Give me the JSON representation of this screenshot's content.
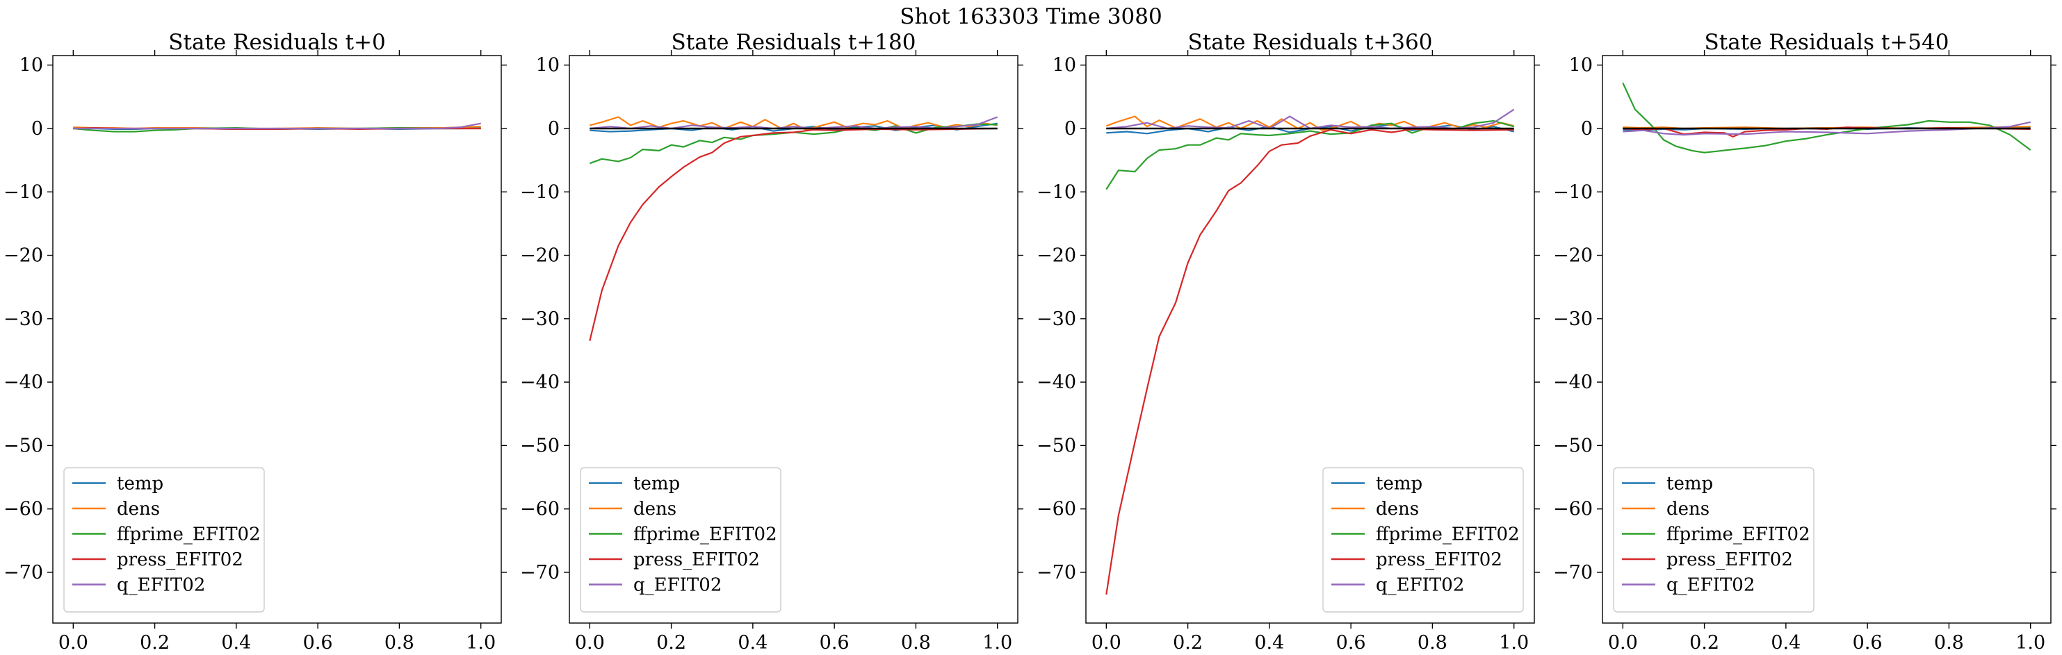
{
  "figure": {
    "suptitle": "Shot 163303   Time 3080"
  },
  "chart_data": [
    {
      "type": "line",
      "title": "State Residuals t+0",
      "xlabel": "",
      "ylabel": "",
      "xlim": [
        -0.05,
        1.05
      ],
      "ylim": [
        -78,
        11.5
      ],
      "xticks": [
        0.0,
        0.2,
        0.4,
        0.6,
        0.8,
        1.0
      ],
      "yticks": [
        10,
        0,
        -10,
        -20,
        -30,
        -40,
        -50,
        -60,
        -70
      ],
      "legend_position": "lower-left",
      "series": [
        {
          "name": "temp",
          "color": "#1f77b4",
          "x": [
            0,
            0.05,
            0.1,
            0.15,
            0.2,
            0.3,
            0.4,
            0.5,
            0.6,
            0.7,
            0.8,
            0.9,
            0.95,
            1.0
          ],
          "y": [
            0,
            0,
            -0.1,
            -0.1,
            0,
            0,
            -0.1,
            0,
            -0.1,
            0,
            -0.1,
            0,
            0,
            0.1
          ]
        },
        {
          "name": "dens",
          "color": "#ff7f0e",
          "x": [
            0,
            0.05,
            0.1,
            0.15,
            0.2,
            0.3,
            0.4,
            0.5,
            0.6,
            0.7,
            0.8,
            0.9,
            0.95,
            1.0
          ],
          "y": [
            0.2,
            0.1,
            0.1,
            0,
            0.1,
            0.1,
            0,
            0,
            0.1,
            0,
            0.1,
            0.1,
            0.2,
            0.3
          ]
        },
        {
          "name": "ffprime_EFIT02",
          "color": "#2ca02c",
          "x": [
            0,
            0.05,
            0.1,
            0.15,
            0.2,
            0.25,
            0.3,
            0.4,
            0.5,
            0.6,
            0.7,
            0.8,
            0.9,
            1.0
          ],
          "y": [
            0,
            -0.3,
            -0.5,
            -0.5,
            -0.3,
            -0.2,
            0,
            0.1,
            -0.1,
            0,
            0,
            0.1,
            0,
            0
          ]
        },
        {
          "name": "press_EFIT02",
          "color": "#d62728",
          "x": [
            0,
            0.05,
            0.1,
            0.2,
            0.3,
            0.4,
            0.5,
            0.6,
            0.7,
            0.8,
            0.9,
            1.0
          ],
          "y": [
            0,
            0.1,
            0,
            0,
            0,
            -0.1,
            -0.1,
            0,
            -0.1,
            0,
            0,
            0
          ]
        },
        {
          "name": "q_EFIT02",
          "color": "#9467bd",
          "x": [
            0,
            0.1,
            0.2,
            0.3,
            0.4,
            0.5,
            0.6,
            0.7,
            0.8,
            0.9,
            0.95,
            1.0
          ],
          "y": [
            0,
            0,
            0,
            0,
            0,
            0,
            0,
            0,
            0,
            0,
            0.2,
            0.8
          ]
        }
      ]
    },
    {
      "type": "line",
      "title": "State Residuals t+180",
      "xlabel": "",
      "ylabel": "",
      "xlim": [
        -0.05,
        1.05
      ],
      "ylim": [
        -78,
        11.5
      ],
      "xticks": [
        0.0,
        0.2,
        0.4,
        0.6,
        0.8,
        1.0
      ],
      "yticks": [
        10,
        0,
        -10,
        -20,
        -30,
        -40,
        -50,
        -60,
        -70
      ],
      "legend_position": "lower-left",
      "series": [
        {
          "name": "temp",
          "color": "#1f77b4",
          "x": [
            0,
            0.05,
            0.1,
            0.15,
            0.2,
            0.25,
            0.3,
            0.35,
            0.4,
            0.45,
            0.5,
            0.55,
            0.6,
            0.65,
            0.7,
            0.75,
            0.8,
            0.85,
            0.9,
            0.95,
            1.0
          ],
          "y": [
            -0.3,
            -0.5,
            -0.4,
            -0.2,
            0,
            -0.3,
            0.2,
            -0.2,
            0.3,
            -0.4,
            0,
            0.3,
            -0.2,
            0.2,
            0.4,
            -0.3,
            0.2,
            0.5,
            -0.2,
            0.3,
            0.8
          ]
        },
        {
          "name": "dens",
          "color": "#ff7f0e",
          "x": [
            0,
            0.03,
            0.07,
            0.1,
            0.13,
            0.17,
            0.2,
            0.23,
            0.27,
            0.3,
            0.33,
            0.37,
            0.4,
            0.43,
            0.47,
            0.5,
            0.53,
            0.57,
            0.6,
            0.63,
            0.67,
            0.7,
            0.73,
            0.77,
            0.8,
            0.83,
            0.87,
            0.9,
            0.93,
            0.97,
            1.0
          ],
          "y": [
            0.5,
            1,
            1.8,
            0.5,
            1.2,
            0.2,
            0.8,
            1.2,
            0.4,
            0.9,
            0,
            1,
            0.3,
            1.4,
            0,
            0.8,
            -0.2,
            0.5,
            1,
            0.2,
            0.8,
            0.6,
            1.2,
            0,
            0.5,
            0.9,
            0.2,
            0.6,
            0.3,
            0.8,
            0.5
          ]
        },
        {
          "name": "ffprime_EFIT02",
          "color": "#2ca02c",
          "x": [
            0,
            0.03,
            0.07,
            0.1,
            0.13,
            0.17,
            0.2,
            0.23,
            0.27,
            0.3,
            0.33,
            0.37,
            0.4,
            0.45,
            0.5,
            0.55,
            0.6,
            0.65,
            0.7,
            0.75,
            0.8,
            0.85,
            0.9,
            0.95,
            1.0
          ],
          "y": [
            -5.5,
            -4.8,
            -5.2,
            -4.6,
            -3.3,
            -3.5,
            -2.6,
            -2.9,
            -1.9,
            -2.2,
            -1.4,
            -1.7,
            -1.1,
            -0.9,
            -0.6,
            -0.9,
            -0.6,
            0.1,
            -0.3,
            0.4,
            -0.7,
            0.2,
            0.3,
            0.7,
            0.6
          ]
        },
        {
          "name": "press_EFIT02",
          "color": "#d62728",
          "x": [
            0,
            0.03,
            0.07,
            0.1,
            0.13,
            0.17,
            0.2,
            0.23,
            0.27,
            0.3,
            0.33,
            0.37,
            0.4,
            0.45,
            0.5,
            0.55,
            0.6,
            0.7,
            0.8,
            0.9,
            1.0
          ],
          "y": [
            -33.5,
            -25.5,
            -18.5,
            -14.8,
            -12,
            -9.2,
            -7.6,
            -6.1,
            -4.5,
            -3.8,
            -2.3,
            -1.3,
            -1.1,
            -0.7,
            -0.6,
            -0.2,
            -0.3,
            -0.1,
            -0.2,
            -0.1,
            0
          ]
        },
        {
          "name": "q_EFIT02",
          "color": "#9467bd",
          "x": [
            0,
            0.05,
            0.1,
            0.15,
            0.2,
            0.25,
            0.3,
            0.35,
            0.4,
            0.45,
            0.5,
            0.55,
            0.6,
            0.65,
            0.7,
            0.75,
            0.8,
            0.85,
            0.9,
            0.95,
            1.0
          ],
          "y": [
            0,
            0.3,
            0,
            0.4,
            0,
            0.5,
            0.2,
            0.1,
            0.3,
            0,
            0.3,
            0,
            0.2,
            0.4,
            0,
            0.2,
            0.3,
            0,
            0.3,
            0.6,
            1.8
          ]
        },
        {
          "name": "",
          "color": "#000000",
          "x": [
            0,
            0.2,
            0.4,
            0.6,
            0.8,
            1.0
          ],
          "y": [
            0,
            0,
            0,
            0,
            0,
            0
          ]
        }
      ]
    },
    {
      "type": "line",
      "title": "State Residuals t+360",
      "xlabel": "",
      "ylabel": "",
      "xlim": [
        -0.05,
        1.05
      ],
      "ylim": [
        -78,
        11.5
      ],
      "xticks": [
        0.0,
        0.2,
        0.4,
        0.6,
        0.8,
        1.0
      ],
      "yticks": [
        10,
        0,
        -10,
        -20,
        -30,
        -40,
        -50,
        -60,
        -70
      ],
      "legend_position": "lower-right",
      "series": [
        {
          "name": "temp",
          "color": "#1f77b4",
          "x": [
            0,
            0.05,
            0.1,
            0.15,
            0.2,
            0.25,
            0.3,
            0.35,
            0.4,
            0.45,
            0.5,
            0.55,
            0.6,
            0.65,
            0.7,
            0.75,
            0.8,
            0.85,
            0.9,
            0.95,
            1.0
          ],
          "y": [
            -0.7,
            -0.5,
            -0.8,
            -0.3,
            0,
            -0.5,
            0.2,
            -0.3,
            0.3,
            -0.6,
            0,
            0.3,
            -0.4,
            0.2,
            0.6,
            -0.3,
            0.2,
            0.5,
            -0.2,
            0.3,
            -0.5
          ]
        },
        {
          "name": "dens",
          "color": "#ff7f0e",
          "x": [
            0,
            0.03,
            0.07,
            0.1,
            0.13,
            0.17,
            0.2,
            0.23,
            0.27,
            0.3,
            0.33,
            0.37,
            0.4,
            0.43,
            0.47,
            0.5,
            0.53,
            0.57,
            0.6,
            0.63,
            0.67,
            0.7,
            0.73,
            0.77,
            0.8,
            0.83,
            0.87,
            0.9,
            0.93,
            0.97,
            1.0
          ],
          "y": [
            0.4,
            1.1,
            1.9,
            0.3,
            1.3,
            0.1,
            0.8,
            1.5,
            0.2,
            0.9,
            0,
            1.2,
            0.2,
            1.5,
            0,
            0.9,
            -0.3,
            0.4,
            1.1,
            0.1,
            0.8,
            0.5,
            1.1,
            0,
            0.4,
            0.9,
            0.1,
            0.6,
            0.2,
            0.9,
            0.4
          ]
        },
        {
          "name": "ffprime_EFIT02",
          "color": "#2ca02c",
          "x": [
            0,
            0.03,
            0.07,
            0.1,
            0.13,
            0.17,
            0.2,
            0.23,
            0.27,
            0.3,
            0.33,
            0.37,
            0.4,
            0.45,
            0.5,
            0.55,
            0.6,
            0.65,
            0.7,
            0.75,
            0.8,
            0.85,
            0.9,
            0.95,
            1.0
          ],
          "y": [
            -9.6,
            -6.6,
            -6.8,
            -4.7,
            -3.4,
            -3.2,
            -2.6,
            -2.6,
            -1.5,
            -1.8,
            -0.8,
            -1,
            -1.1,
            -0.8,
            -0.4,
            -0.9,
            -0.7,
            0.5,
            0.8,
            -0.7,
            0.3,
            -0.2,
            0.8,
            1.2,
            0.3
          ]
        },
        {
          "name": "press_EFIT02",
          "color": "#d62728",
          "x": [
            0,
            0.03,
            0.07,
            0.1,
            0.13,
            0.17,
            0.2,
            0.23,
            0.27,
            0.3,
            0.33,
            0.37,
            0.4,
            0.43,
            0.47,
            0.5,
            0.55,
            0.6,
            0.65,
            0.7,
            0.75,
            0.8,
            0.9,
            1.0
          ],
          "y": [
            -73.5,
            -61,
            -49.5,
            -41,
            -32.8,
            -27.5,
            -21.2,
            -16.8,
            -13,
            -9.8,
            -8.6,
            -5.9,
            -3.6,
            -2.6,
            -2.3,
            -1.2,
            -0.2,
            -0.8,
            -0.2,
            -0.6,
            -0.1,
            -0.2,
            -0.3,
            -0.2
          ]
        },
        {
          "name": "q_EFIT02",
          "color": "#9467bd",
          "x": [
            0,
            0.05,
            0.1,
            0.15,
            0.2,
            0.25,
            0.3,
            0.35,
            0.4,
            0.45,
            0.5,
            0.55,
            0.6,
            0.65,
            0.7,
            0.75,
            0.8,
            0.85,
            0.9,
            0.95,
            1.0
          ],
          "y": [
            0,
            0.3,
            0.9,
            0,
            0.4,
            0.2,
            0.1,
            1.2,
            0,
            1.9,
            0,
            0.5,
            0.2,
            0.3,
            0,
            0.2,
            0.3,
            0,
            0.2,
            0.9,
            3.0
          ]
        },
        {
          "name": "",
          "color": "#000000",
          "x": [
            0,
            0.2,
            0.4,
            0.6,
            0.8,
            1.0
          ],
          "y": [
            0,
            0,
            0,
            0,
            0,
            0
          ]
        }
      ]
    },
    {
      "type": "line",
      "title": "State Residuals t+540",
      "xlabel": "",
      "ylabel": "",
      "xlim": [
        -0.05,
        1.05
      ],
      "ylim": [
        -78,
        11.5
      ],
      "xticks": [
        0.0,
        0.2,
        0.4,
        0.6,
        0.8,
        1.0
      ],
      "yticks": [
        10,
        0,
        -10,
        -20,
        -30,
        -40,
        -50,
        -60,
        -70
      ],
      "legend_position": "lower-left",
      "series": [
        {
          "name": "temp",
          "color": "#1f77b4",
          "x": [
            0,
            0.05,
            0.1,
            0.15,
            0.2,
            0.3,
            0.4,
            0.5,
            0.6,
            0.7,
            0.8,
            0.9,
            1.0
          ],
          "y": [
            -0.2,
            -0.3,
            -0.1,
            -0.2,
            0,
            -0.1,
            0,
            0.1,
            -0.1,
            0.1,
            0,
            0.1,
            0.2
          ]
        },
        {
          "name": "dens",
          "color": "#ff7f0e",
          "x": [
            0,
            0.05,
            0.1,
            0.15,
            0.2,
            0.3,
            0.4,
            0.5,
            0.6,
            0.7,
            0.8,
            0.9,
            1.0
          ],
          "y": [
            0.2,
            0.1,
            0.2,
            0,
            0.1,
            0.2,
            0,
            0.1,
            0.2,
            0,
            0.1,
            0.2,
            0.3
          ]
        },
        {
          "name": "ffprime_EFIT02",
          "color": "#2ca02c",
          "x": [
            0,
            0.03,
            0.07,
            0.1,
            0.13,
            0.17,
            0.2,
            0.23,
            0.27,
            0.3,
            0.35,
            0.4,
            0.45,
            0.5,
            0.55,
            0.6,
            0.65,
            0.7,
            0.75,
            0.8,
            0.85,
            0.9,
            0.95,
            1.0
          ],
          "y": [
            7.2,
            3,
            0.5,
            -1.8,
            -2.8,
            -3.5,
            -3.8,
            -3.6,
            -3.3,
            -3.1,
            -2.7,
            -2,
            -1.6,
            -1,
            -0.5,
            0,
            0.3,
            0.6,
            1.2,
            1,
            1,
            0.5,
            -1,
            -3.4
          ]
        },
        {
          "name": "press_EFIT02",
          "color": "#d62728",
          "x": [
            0,
            0.05,
            0.1,
            0.15,
            0.2,
            0.25,
            0.27,
            0.3,
            0.35,
            0.4,
            0.45,
            0.5,
            0.55,
            0.6,
            0.7,
            0.8,
            0.9,
            1.0
          ],
          "y": [
            0,
            -0.2,
            0,
            -0.9,
            -0.6,
            -0.7,
            -1.3,
            -0.5,
            -0.3,
            -0.2,
            0,
            -0.1,
            0.2,
            0.1,
            0,
            0.1,
            0,
            -0.1
          ]
        },
        {
          "name": "q_EFIT02",
          "color": "#9467bd",
          "x": [
            0,
            0.05,
            0.1,
            0.15,
            0.2,
            0.3,
            0.4,
            0.5,
            0.6,
            0.7,
            0.8,
            0.9,
            0.95,
            1.0
          ],
          "y": [
            -0.5,
            -0.3,
            -0.8,
            -1,
            -0.8,
            -0.9,
            -0.5,
            -0.6,
            -0.8,
            -0.4,
            -0.2,
            0.1,
            0.3,
            1.0
          ]
        },
        {
          "name": "",
          "color": "#000000",
          "x": [
            0,
            0.2,
            0.4,
            0.6,
            0.8,
            1.0
          ],
          "y": [
            0,
            0,
            0,
            0,
            0,
            0
          ]
        }
      ]
    }
  ]
}
